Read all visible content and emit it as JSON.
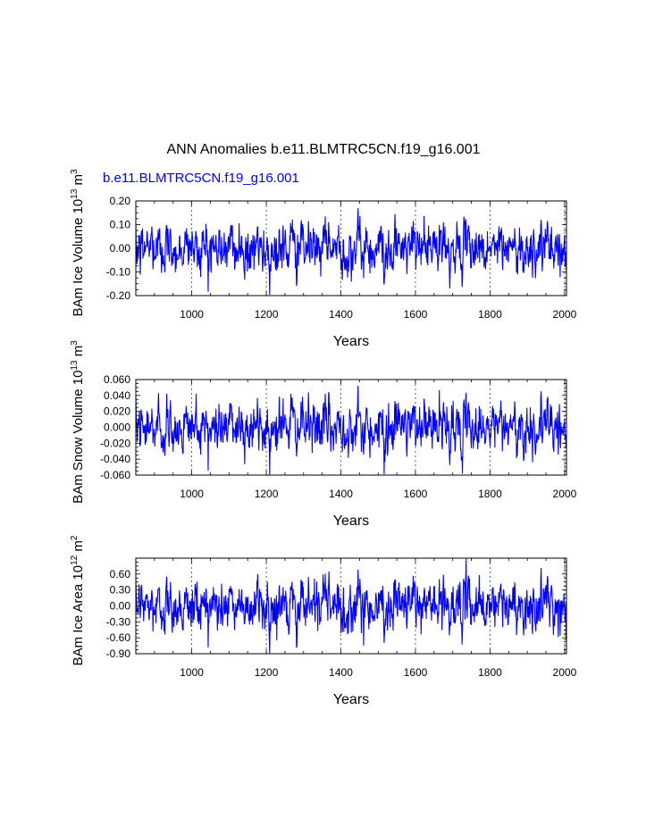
{
  "figure": {
    "title": "ANN Anomalies b.e11.BLMTRC5CN.f19_g16.001",
    "case_label": "b.e11.BLMTRC5CN.f19_g16.001",
    "line_color": "#0000ff"
  },
  "chart_data": [
    {
      "type": "line",
      "ylabel": {
        "main": "BAm Ice Volume 10",
        "exp": "13",
        "unit": " m",
        "unit_exp": "3"
      },
      "xlabel": "Years",
      "xlim": [
        850,
        2005
      ],
      "ylim": [
        -0.2,
        0.2
      ],
      "xticks": [
        1000,
        1200,
        1400,
        1600,
        1800,
        2000
      ],
      "xtick_labels": [
        "1000",
        "1200",
        "1400",
        "1600",
        "1800",
        "2000"
      ],
      "yticks": [
        -0.2,
        -0.1,
        0.0,
        0.1,
        0.2
      ],
      "ytick_labels": [
        "-0.20",
        "-0.10",
        "0.00",
        "0.10",
        "0.20"
      ],
      "grid": "vertical dashed at x ticks",
      "series": [
        {
          "name": "b.e11.BLMTRC5CN.f19_g16.001",
          "x_start": 850,
          "x_end": 2005,
          "amplitude": 0.052,
          "mean": 0.0
        }
      ]
    },
    {
      "type": "line",
      "ylabel": {
        "main": "BAm Snow Volume 10",
        "exp": "13",
        "unit": " m",
        "unit_exp": "3"
      },
      "xlabel": "Years",
      "xlim": [
        850,
        2005
      ],
      "ylim": [
        -0.06,
        0.06
      ],
      "xticks": [
        1000,
        1200,
        1400,
        1600,
        1800,
        2000
      ],
      "xtick_labels": [
        "1000",
        "1200",
        "1400",
        "1600",
        "1800",
        "2000"
      ],
      "yticks": [
        -0.06,
        -0.04,
        -0.02,
        0.0,
        0.02,
        0.04,
        0.06
      ],
      "ytick_labels": [
        "-0.060",
        "-0.040",
        "-0.020",
        "0.000",
        "0.020",
        "0.040",
        "0.060"
      ],
      "grid": "vertical dashed at x ticks",
      "series": [
        {
          "name": "b.e11.BLMTRC5CN.f19_g16.001",
          "x_start": 850,
          "x_end": 2005,
          "amplitude": 0.016,
          "mean": 0.0
        }
      ]
    },
    {
      "type": "line",
      "ylabel": {
        "main": "BAm Ice Area 10",
        "exp": "12",
        "unit": " m",
        "unit_exp": "2"
      },
      "xlabel": "Years",
      "xlim": [
        850,
        2005
      ],
      "ylim": [
        -0.9,
        0.9
      ],
      "xticks": [
        1000,
        1200,
        1400,
        1600,
        1800,
        2000
      ],
      "xtick_labels": [
        "1000",
        "1200",
        "1400",
        "1600",
        "1800",
        "2000"
      ],
      "yticks": [
        -0.9,
        -0.6,
        -0.3,
        0.0,
        0.3,
        0.6
      ],
      "ytick_labels": [
        "-0.90",
        "-0.60",
        "-0.30",
        "0.00",
        "0.30",
        "0.60"
      ],
      "grid": "vertical dashed at x ticks",
      "series": [
        {
          "name": "b.e11.BLMTRC5CN.f19_g16.001",
          "x_start": 850,
          "x_end": 2005,
          "amplitude": 0.24,
          "mean": 0.0
        }
      ]
    }
  ]
}
